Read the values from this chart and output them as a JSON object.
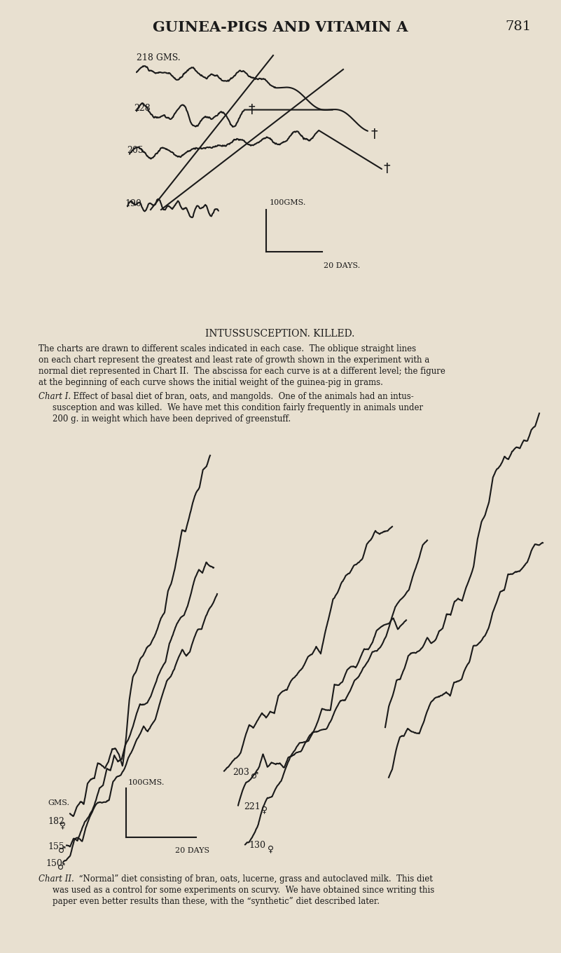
{
  "bg_color": "#e8e0d0",
  "line_color": "#1a1a1a",
  "title": "GUINEA-PIGS AND VITAMIN A",
  "page_num": "781",
  "chart1_caption": "INTUSSUSCEPTION. KILLED.",
  "chart1_desc_line1": "The charts are drawn to different scales indicated in each case.  The oblique straight lines",
  "chart1_desc_line2": "on each chart represent the greatest and least rate of growth shown in the experiment with a",
  "chart1_desc_line3": "normal diet represented in Chart II.  The abscissa for each curve is at a different level; the figure",
  "chart1_desc_line4": "at the beginning of each curve shows the initial weight of the guinea-pig in grams.",
  "chart1_italic": "Chart I.",
  "chart1_text": "  Effect of basal diet of bran, oats, and mangolds.  One of the animals had an intus-",
  "chart1_text2": "susception and was killed.  We have met this condition fairly frequently in animals under",
  "chart1_text3": "200 g. in weight which have been deprived of greenstuff.",
  "chart2_italic": "Chart II.",
  "chart2_text": "  “Normal” diet consisting of bran, oats, lucerne, grass and autoclaved milk.  This diet",
  "chart2_text2": "was used as a control for some experiments on scurvy.  We have obtained since writing this",
  "chart2_text3": "paper even better results than these, with the “synthetic” diet described later."
}
